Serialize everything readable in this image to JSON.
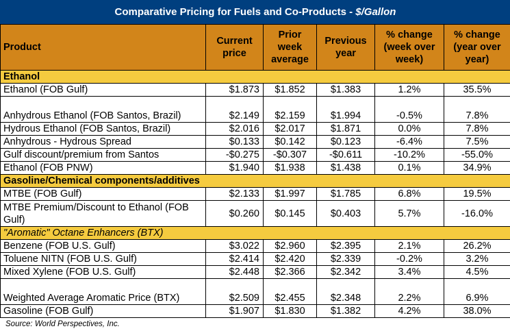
{
  "title": {
    "main": "Comparative Pricing for Fuels and Co-Products - ",
    "unit": "$/Gallon"
  },
  "columns": [
    "Product",
    "Current price",
    "Prior week average",
    "Previous year",
    "% change (week over week)",
    "% change (year over year)"
  ],
  "sections": [
    {
      "label": "Ethanol",
      "italic": false,
      "rows": [
        {
          "product": "Ethanol (FOB Gulf)",
          "current": "$1.873",
          "prior_week": "$1.852",
          "prev_year": "$1.383",
          "pct_week": "1.2%",
          "pct_year": "35.5%"
        },
        {
          "product": "Anhydrous Ethanol (FOB Santos, Brazil)",
          "current": "$2.149",
          "prior_week": "$2.159",
          "prev_year": "$1.994",
          "pct_week": "-0.5%",
          "pct_year": "7.8%"
        },
        {
          "product": "Hydrous Ethanol (FOB Santos, Brazil)",
          "current": "$2.016",
          "prior_week": "$2.017",
          "prev_year": "$1.871",
          "pct_week": "0.0%",
          "pct_year": "7.8%"
        },
        {
          "product": "Anhydrous - Hydrous Spread",
          "current": "$0.133",
          "prior_week": "$0.142",
          "prev_year": "$0.123",
          "pct_week": "-6.4%",
          "pct_year": "7.5%"
        },
        {
          "product": "Gulf discount/premium from Santos",
          "current": "-$0.275",
          "prior_week": "-$0.307",
          "prev_year": "-$0.611",
          "pct_week": "-10.2%",
          "pct_year": "-55.0%"
        },
        {
          "product": "Ethanol (FOB PNW)",
          "current": "$1.940",
          "prior_week": "$1.938",
          "prev_year": "$1.438",
          "pct_week": "0.1%",
          "pct_year": "34.9%"
        }
      ]
    },
    {
      "label": "Gasoline/Chemical components/additives",
      "italic": false,
      "rows": [
        {
          "product": "MTBE (FOB Gulf)",
          "current": "$2.133",
          "prior_week": "$1.997",
          "prev_year": "$1.785",
          "pct_week": "6.8%",
          "pct_year": "19.5%"
        },
        {
          "product": "MTBE Premium/Discount to Ethanol (FOB Gulf)",
          "current": "$0.260",
          "prior_week": "$0.145",
          "prev_year": "$0.403",
          "pct_week": "5.7%",
          "pct_year": "-16.0%"
        }
      ]
    },
    {
      "label": "\"Aromatic\" Octane Enhancers (BTX)",
      "italic": true,
      "rows": [
        {
          "product": "Benzene (FOB U.S. Gulf)",
          "current": "$3.022",
          "prior_week": "$2.960",
          "prev_year": "$2.395",
          "pct_week": "2.1%",
          "pct_year": "26.2%"
        },
        {
          "product": "Toluene NITN (FOB U.S. Gulf)",
          "current": "$2.414",
          "prior_week": "$2.420",
          "prev_year": "$2.339",
          "pct_week": "-0.2%",
          "pct_year": "3.2%"
        },
        {
          "product": "Mixed Xylene (FOB U.S. Gulf)",
          "current": "$2.448",
          "prior_week": "$2.366",
          "prev_year": "$2.342",
          "pct_week": "3.4%",
          "pct_year": "4.5%"
        },
        {
          "product": "Weighted Average Aromatic Price (BTX)",
          "current": "$2.509",
          "prior_week": "$2.455",
          "prev_year": "$2.348",
          "pct_week": "2.2%",
          "pct_year": "6.9%"
        },
        {
          "product": "Gasoline (FOB Gulf)",
          "current": "$1.907",
          "prior_week": "$1.830",
          "prev_year": "$1.382",
          "pct_week": "4.2%",
          "pct_year": "38.0%"
        }
      ]
    }
  ],
  "source": "Source: World Perspectives, Inc."
}
